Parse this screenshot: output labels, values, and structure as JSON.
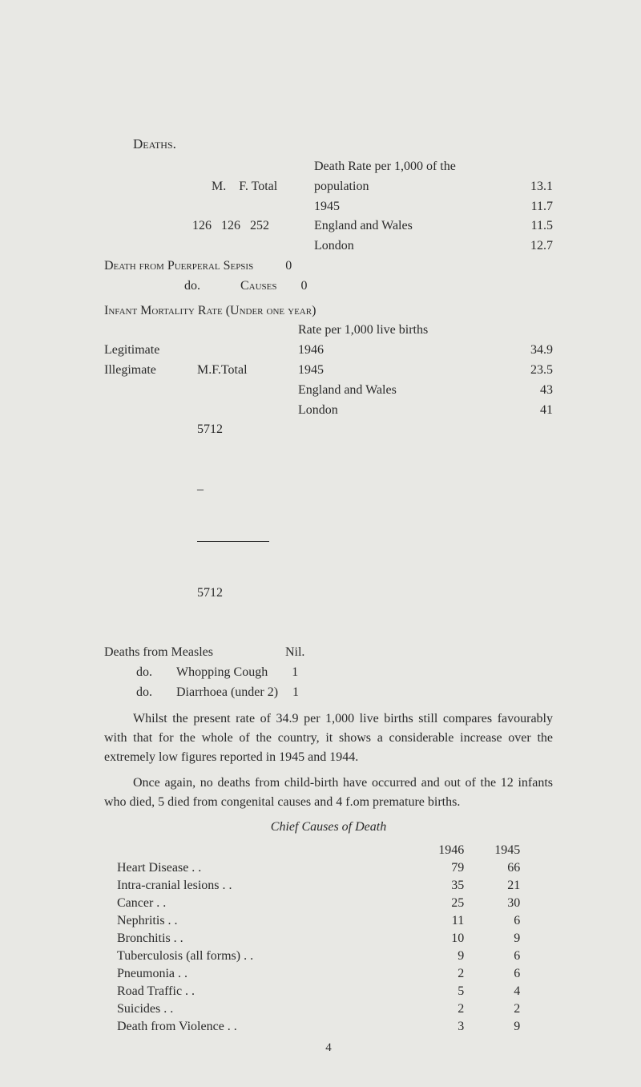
{
  "deaths": {
    "heading": "Deaths.",
    "header_cols": [
      "M.",
      "F.",
      "Total"
    ],
    "row": {
      "m": "126",
      "f": "126",
      "t": "252"
    },
    "rate_line1": "Death Rate per 1,000 of the",
    "rate_population": "population",
    "rate_population_val": "13.1",
    "rate_1945": "1945",
    "rate_1945_val": "11.7",
    "rate_ew": "England and Wales",
    "rate_ew_val": "11.5",
    "rate_london": "London",
    "rate_london_val": "12.7"
  },
  "dfrom": {
    "row1_a": "Death from Puerperal Sepsis",
    "row1_v": "0",
    "row2_a": "do.",
    "row2_b": "Causes",
    "row2_v": "0"
  },
  "imr": {
    "title": "Infant Mortality Rate (Under one year)",
    "header_cols": [
      "M.",
      "F.",
      "Total"
    ],
    "legit": "Legitimate",
    "legit_m": "5",
    "legit_f": "7",
    "legit_t": "12",
    "illegit": "Illegimate",
    "illegit_m": "–",
    "rate_head": "Rate per 1,000 live births",
    "r_1946": "1946",
    "v_1946": "34.9",
    "r_1945": "1945",
    "v_1945": "23.5",
    "r_ew": "England and Wales",
    "v_ew": "43",
    "r_london": "London",
    "v_london": "41",
    "total_m": "5",
    "total_f": "7",
    "total_t": "12"
  },
  "dsub": {
    "measles": "Deaths from Measles",
    "measles_v": "Nil.",
    "do1a": "do.",
    "do1b": "Whopping Cough",
    "do1v": "1",
    "do2a": "do.",
    "do2b": "Diarrhoea (under 2)",
    "do2v": "1"
  },
  "para1": "Whilst the present rate of 34.9 per 1,000 live births still compares favourably with that for the whole of the country, it shows a considerable increase over the extremely low figures reported in 1945 and 1944.",
  "para2": "Once again, no deaths from child-birth have occurred and out of the 12 infants who died, 5 died from congenital causes and 4 f.om premature births.",
  "ccd": {
    "title": "Chief Causes of Death",
    "col1946": "1946",
    "col1945": "1945",
    "rows": [
      {
        "name": "Heart Disease",
        "a": "79",
        "b": "66"
      },
      {
        "name": "Intra-cranial lesions",
        "a": "35",
        "b": "21"
      },
      {
        "name": "Cancer",
        "a": "25",
        "b": "30"
      },
      {
        "name": "Nephritis",
        "a": "11",
        "b": "6"
      },
      {
        "name": "Bronchitis",
        "a": "10",
        "b": "9"
      },
      {
        "name": "Tuberculosis (all forms)",
        "a": "9",
        "b": "6"
      },
      {
        "name": "Pneumonia",
        "a": "2",
        "b": "6"
      },
      {
        "name": "Road Traffic",
        "a": "5",
        "b": "4"
      },
      {
        "name": "Suicides",
        "a": "2",
        "b": "2"
      },
      {
        "name": "Death from Violence",
        "a": "3",
        "b": "9"
      }
    ]
  },
  "pagenum": "4"
}
